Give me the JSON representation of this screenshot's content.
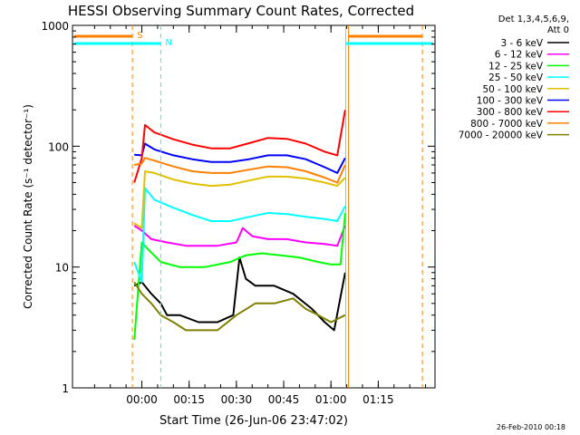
{
  "chart_data": {
    "type": "line",
    "title": "HESSI Observing Summary Count Rates, Corrected",
    "xlabel": "Start Time (26-Jun-06 23:47:02)",
    "ylabel": "Corrected Count Rate (s⁻¹ detector⁻¹)",
    "y_log": true,
    "ylim": [
      1,
      1000
    ],
    "xlim_minutes": [
      -22,
      93
    ],
    "yticks": [
      {
        "value": 1,
        "label": "1"
      },
      {
        "value": 10,
        "label": "10"
      },
      {
        "value": 100,
        "label": "100"
      },
      {
        "value": 1000,
        "label": "1000"
      }
    ],
    "xticks": [
      {
        "value": 0,
        "label": "00:00"
      },
      {
        "value": 15,
        "label": "00:15"
      },
      {
        "value": 30,
        "label": "00:30"
      },
      {
        "value": 45,
        "label": "00:45"
      },
      {
        "value": 60,
        "label": "01:00"
      },
      {
        "value": 75,
        "label": "01:15"
      }
    ],
    "legend": {
      "position": "right",
      "header1": "Det 1,3,4,5,6,9,",
      "header2": "Att 0"
    },
    "series": [
      {
        "name": "3 - 6 keV",
        "color": "#000000",
        "points": [
          [
            -2.4,
            7
          ],
          [
            0,
            7.5
          ],
          [
            3,
            6
          ],
          [
            6,
            5
          ],
          [
            8,
            4
          ],
          [
            12,
            4
          ],
          [
            18,
            3.5
          ],
          [
            24,
            3.5
          ],
          [
            29,
            4
          ],
          [
            31,
            12
          ],
          [
            33,
            8
          ],
          [
            36,
            7
          ],
          [
            42,
            7
          ],
          [
            48,
            6
          ],
          [
            54,
            4.5
          ],
          [
            58,
            3.5
          ],
          [
            61,
            3
          ],
          [
            64.5,
            9
          ]
        ]
      },
      {
        "name": "6 - 12 keV",
        "color": "#ff00ff",
        "points": [
          [
            -2.4,
            22
          ],
          [
            0,
            20
          ],
          [
            3,
            17
          ],
          [
            8,
            16
          ],
          [
            14,
            15
          ],
          [
            20,
            15
          ],
          [
            24,
            15
          ],
          [
            30,
            16
          ],
          [
            32,
            21
          ],
          [
            35,
            18
          ],
          [
            40,
            17
          ],
          [
            46,
            17
          ],
          [
            52,
            16
          ],
          [
            58,
            15.5
          ],
          [
            62,
            15
          ],
          [
            64.5,
            22
          ]
        ]
      },
      {
        "name": "12 - 25 keV",
        "color": "#00ff00",
        "points": [
          [
            -2.4,
            2.5
          ],
          [
            0,
            16
          ],
          [
            2,
            14
          ],
          [
            6,
            11
          ],
          [
            12,
            10
          ],
          [
            20,
            10
          ],
          [
            28,
            11
          ],
          [
            33,
            12.5
          ],
          [
            38,
            13
          ],
          [
            44,
            12.5
          ],
          [
            50,
            12
          ],
          [
            56,
            11
          ],
          [
            60,
            10.5
          ],
          [
            63,
            10.5
          ],
          [
            64.5,
            28
          ]
        ]
      },
      {
        "name": "25 - 50 keV",
        "color": "#00ffff",
        "points": [
          [
            -2.4,
            11
          ],
          [
            0,
            7.5
          ],
          [
            1,
            45
          ],
          [
            4,
            36
          ],
          [
            10,
            31
          ],
          [
            16,
            27
          ],
          [
            22,
            24
          ],
          [
            28,
            24
          ],
          [
            34,
            26
          ],
          [
            40,
            28
          ],
          [
            46,
            27.5
          ],
          [
            52,
            26
          ],
          [
            58,
            25
          ],
          [
            62,
            24
          ],
          [
            64.5,
            32
          ]
        ]
      },
      {
        "name": "50 - 100 keV",
        "color": "#e0c000",
        "points": [
          [
            -2.4,
            23
          ],
          [
            0,
            21
          ],
          [
            1,
            62
          ],
          [
            4,
            60
          ],
          [
            10,
            53
          ],
          [
            16,
            49
          ],
          [
            22,
            47
          ],
          [
            28,
            48
          ],
          [
            34,
            52
          ],
          [
            40,
            56
          ],
          [
            46,
            56
          ],
          [
            52,
            54
          ],
          [
            58,
            50
          ],
          [
            62,
            47
          ],
          [
            64.5,
            55
          ]
        ]
      },
      {
        "name": "100 - 300 keV",
        "color": "#0000ff",
        "points": [
          [
            -2.4,
            85
          ],
          [
            0,
            84
          ],
          [
            1,
            105
          ],
          [
            4,
            94
          ],
          [
            10,
            84
          ],
          [
            16,
            78
          ],
          [
            22,
            74
          ],
          [
            28,
            74
          ],
          [
            34,
            78
          ],
          [
            40,
            84
          ],
          [
            46,
            84
          ],
          [
            52,
            78
          ],
          [
            58,
            67
          ],
          [
            62,
            60
          ],
          [
            64.5,
            80
          ]
        ]
      },
      {
        "name": "300 - 800 keV",
        "color": "#ff0000",
        "points": [
          [
            -2.4,
            50
          ],
          [
            0,
            80
          ],
          [
            1,
            150
          ],
          [
            4,
            130
          ],
          [
            10,
            114
          ],
          [
            16,
            103
          ],
          [
            22,
            96
          ],
          [
            28,
            96
          ],
          [
            34,
            106
          ],
          [
            40,
            117
          ],
          [
            46,
            115
          ],
          [
            52,
            105
          ],
          [
            58,
            90
          ],
          [
            62,
            84
          ],
          [
            64.5,
            200
          ]
        ]
      },
      {
        "name": "800 - 7000 keV",
        "color": "#ff8000",
        "points": [
          [
            -2.4,
            70
          ],
          [
            0,
            72
          ],
          [
            1,
            80
          ],
          [
            4,
            76
          ],
          [
            10,
            68
          ],
          [
            16,
            62
          ],
          [
            22,
            60
          ],
          [
            28,
            60
          ],
          [
            34,
            64
          ],
          [
            40,
            68
          ],
          [
            46,
            67
          ],
          [
            52,
            62
          ],
          [
            58,
            55
          ],
          [
            62,
            50
          ],
          [
            64.5,
            70
          ]
        ]
      },
      {
        "name": "7000 - 20000 keV",
        "color": "#808000",
        "points": [
          [
            -2.4,
            7.5
          ],
          [
            0,
            6
          ],
          [
            3,
            5
          ],
          [
            6,
            4
          ],
          [
            10,
            3.5
          ],
          [
            14,
            3
          ],
          [
            20,
            3
          ],
          [
            24,
            3
          ],
          [
            30,
            4
          ],
          [
            36,
            5
          ],
          [
            42,
            5
          ],
          [
            48,
            5.5
          ],
          [
            52,
            4.5
          ],
          [
            56,
            4
          ],
          [
            60,
            3.5
          ],
          [
            64.5,
            4
          ]
        ]
      }
    ],
    "markers": [
      {
        "label": "S",
        "color": "#ff8000",
        "x": -3
      },
      {
        "label": "N",
        "color": "#00ffff",
        "x": 6
      }
    ]
  },
  "footer": {
    "timestamp": "26-Feb-2010 00:18"
  }
}
